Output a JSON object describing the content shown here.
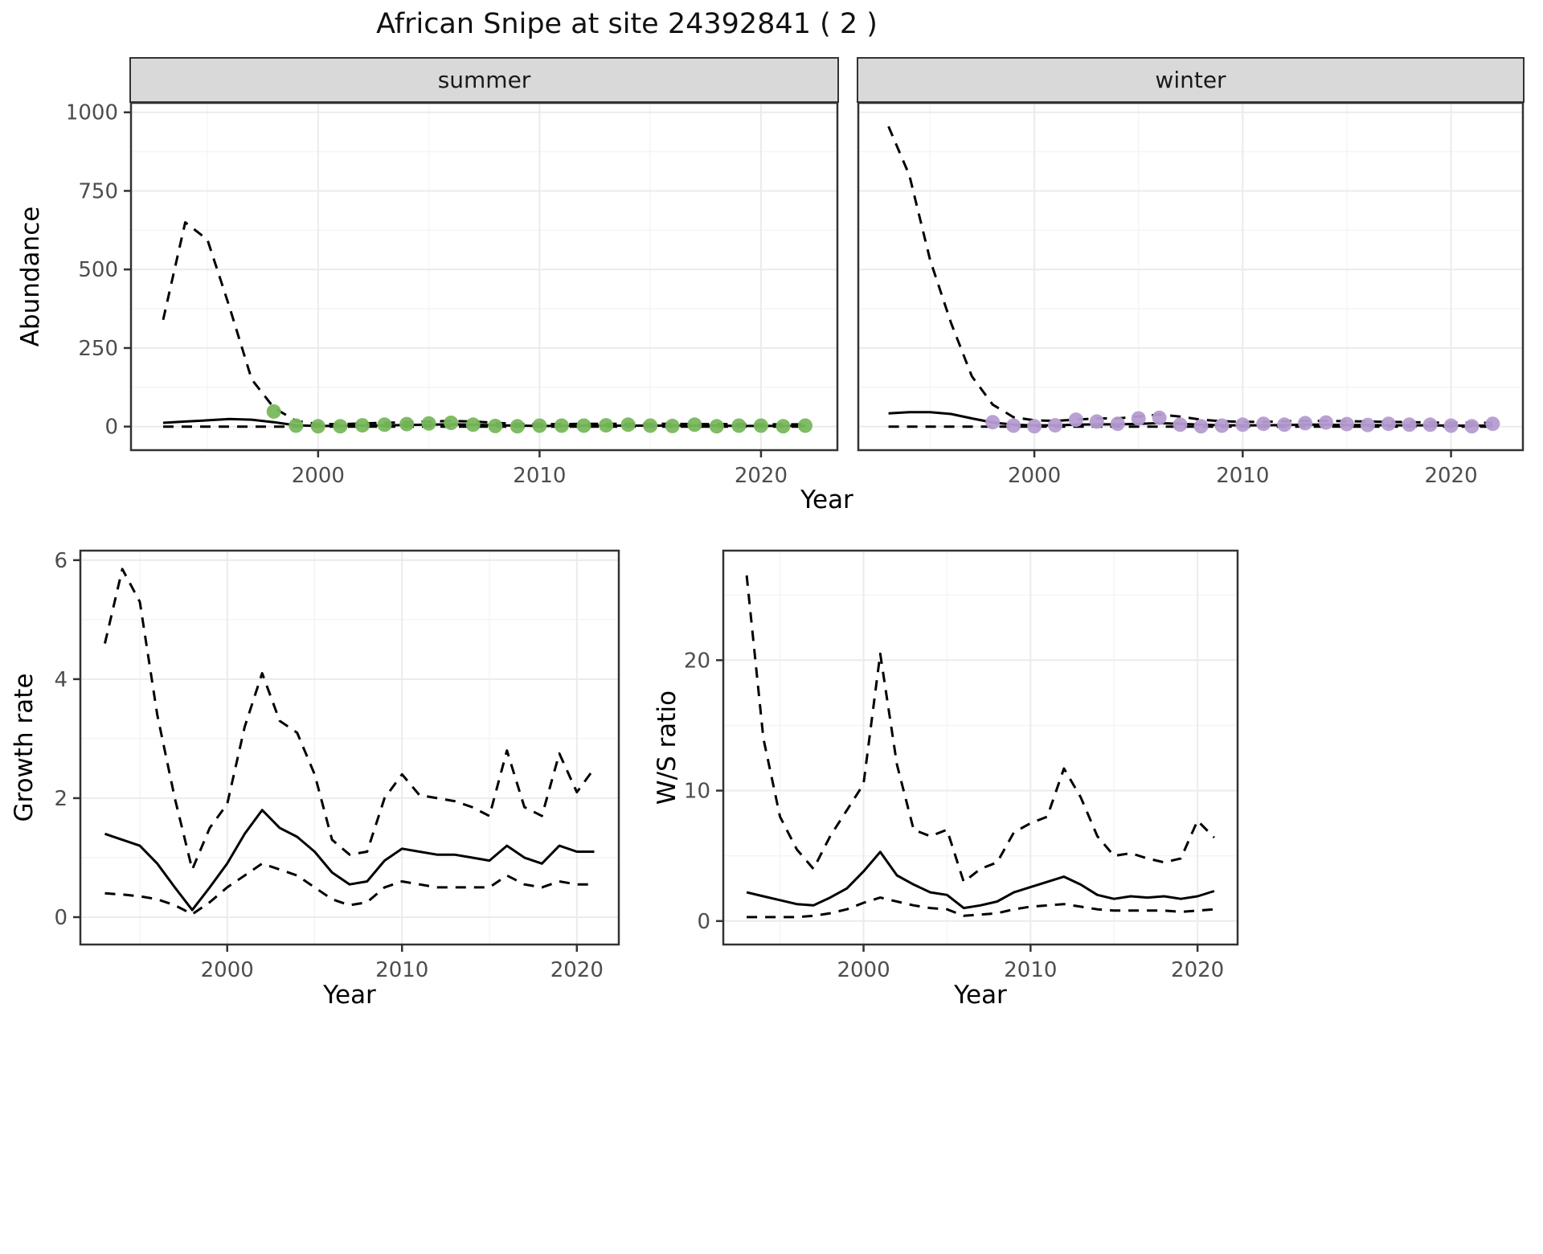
{
  "page": {
    "title": "African Snipe at site 24392841 ( 2 )"
  },
  "theme": {
    "strip_bg": "#d9d9d9",
    "panel_border": "#333333",
    "grid_major": "#ebebeb",
    "grid_minor": "#f5f5f5",
    "tick_label_color": "#4d4d4d",
    "line_color": "#000000"
  },
  "chart_data": [
    {
      "id": "abundance-summer",
      "type": "line+scatter",
      "facet_label": "summer",
      "ylabel": "Abundance",
      "xlabel": "Year",
      "xlim": [
        1991.55,
        2023.45
      ],
      "ylim": [
        -75,
        1030
      ],
      "xticks": [
        2000,
        2010,
        2020
      ],
      "yticks": [
        0,
        250,
        500,
        750,
        1000
      ],
      "grid": true,
      "legend": "none",
      "x": [
        1993,
        1994,
        1995,
        1996,
        1997,
        1998,
        1999,
        2000,
        2001,
        2002,
        2003,
        2004,
        2005,
        2006,
        2007,
        2008,
        2009,
        2010,
        2011,
        2012,
        2013,
        2014,
        2015,
        2016,
        2017,
        2018,
        2019,
        2020,
        2021,
        2022
      ],
      "series": [
        {
          "name": "fit",
          "style": "solid",
          "values": [
            12,
            16,
            20,
            24,
            22,
            14,
            4,
            2,
            2,
            3,
            4,
            5,
            6,
            7,
            6,
            4,
            3,
            2,
            2,
            3,
            3,
            3,
            3,
            3,
            3,
            3,
            2,
            2,
            2,
            2
          ]
        },
        {
          "name": "upper_ci",
          "style": "dashed",
          "values": [
            340,
            650,
            595,
            380,
            150,
            60,
            18,
            8,
            8,
            10,
            12,
            14,
            16,
            18,
            16,
            12,
            9,
            8,
            8,
            9,
            9,
            9,
            9,
            9,
            8,
            8,
            8,
            7,
            7,
            7
          ]
        },
        {
          "name": "lower_ci",
          "style": "dashed",
          "values": [
            0,
            0,
            0,
            0,
            0,
            0,
            0,
            0,
            0,
            0,
            0,
            0,
            0,
            0,
            0,
            0,
            0,
            0,
            0,
            0,
            0,
            0,
            0,
            0,
            0,
            0,
            0,
            0,
            0,
            0
          ]
        }
      ],
      "points": {
        "name": "observed-summer",
        "color": "#78b85c",
        "x": [
          1998,
          1999,
          2000,
          2001,
          2002,
          2003,
          2004,
          2005,
          2006,
          2007,
          2008,
          2009,
          2010,
          2011,
          2012,
          2013,
          2014,
          2015,
          2016,
          2017,
          2018,
          2019,
          2020,
          2021,
          2022
        ],
        "values": [
          48,
          3,
          1,
          1,
          4,
          6,
          8,
          10,
          12,
          6,
          2,
          1,
          3,
          3,
          3,
          4,
          6,
          3,
          2,
          6,
          1,
          3,
          3,
          1,
          3
        ]
      }
    },
    {
      "id": "abundance-winter",
      "type": "line+scatter",
      "facet_label": "winter",
      "ylabel": "Abundance",
      "xlabel": "Year",
      "xlim": [
        1991.55,
        2023.45
      ],
      "ylim": [
        -75,
        1030
      ],
      "xticks": [
        2000,
        2010,
        2020
      ],
      "yticks": [
        0,
        250,
        500,
        750,
        1000
      ],
      "grid": true,
      "legend": "none",
      "x": [
        1993,
        1994,
        1995,
        1996,
        1997,
        1998,
        1999,
        2000,
        2001,
        2002,
        2003,
        2004,
        2005,
        2006,
        2007,
        2008,
        2009,
        2010,
        2011,
        2012,
        2013,
        2014,
        2015,
        2016,
        2017,
        2018,
        2019,
        2020,
        2021,
        2022
      ],
      "series": [
        {
          "name": "fit",
          "style": "solid",
          "values": [
            42,
            46,
            46,
            40,
            26,
            13,
            6,
            4,
            4,
            6,
            7,
            7,
            9,
            11,
            9,
            6,
            4,
            4,
            4,
            5,
            6,
            6,
            5,
            5,
            4,
            4,
            4,
            3,
            3,
            3
          ]
        },
        {
          "name": "upper_ci",
          "style": "dashed",
          "values": [
            955,
            800,
            530,
            330,
            160,
            70,
            30,
            20,
            18,
            22,
            26,
            26,
            32,
            38,
            32,
            22,
            17,
            15,
            15,
            17,
            18,
            18,
            17,
            16,
            15,
            14,
            13,
            12,
            12,
            12
          ]
        },
        {
          "name": "lower_ci",
          "style": "dashed",
          "values": [
            0,
            0,
            0,
            0,
            0,
            0,
            0,
            0,
            0,
            0,
            0,
            0,
            0,
            0,
            0,
            0,
            0,
            0,
            0,
            0,
            0,
            0,
            0,
            0,
            0,
            0,
            0,
            0,
            0,
            0
          ]
        }
      ],
      "points": {
        "name": "observed-winter",
        "color": "#b59cd1",
        "x": [
          1998,
          1999,
          2000,
          2001,
          2002,
          2003,
          2004,
          2005,
          2006,
          2007,
          2008,
          2009,
          2010,
          2011,
          2012,
          2013,
          2014,
          2015,
          2016,
          2017,
          2018,
          2019,
          2020,
          2021,
          2022
        ],
        "values": [
          14,
          3,
          1,
          4,
          22,
          16,
          9,
          26,
          28,
          6,
          1,
          3,
          6,
          9,
          6,
          11,
          13,
          8,
          5,
          9,
          6,
          6,
          3,
          1,
          9
        ]
      }
    },
    {
      "id": "growth",
      "type": "line",
      "facet_label": "",
      "ylabel": "Growth rate",
      "xlabel": "Year",
      "xlim": [
        1991.6,
        2022.4
      ],
      "ylim": [
        -0.46,
        6.16
      ],
      "xticks": [
        2000,
        2010,
        2020
      ],
      "yticks": [
        0,
        2,
        4,
        6
      ],
      "grid": true,
      "legend": "none",
      "x": [
        1993,
        1994,
        1995,
        1996,
        1997,
        1998,
        1999,
        2000,
        2001,
        2002,
        2003,
        2004,
        2005,
        2006,
        2007,
        2008,
        2009,
        2010,
        2011,
        2012,
        2013,
        2014,
        2015,
        2016,
        2017,
        2018,
        2019,
        2020,
        2021
      ],
      "series": [
        {
          "name": "fit",
          "style": "solid",
          "values": [
            1.4,
            1.3,
            1.2,
            0.9,
            0.5,
            0.12,
            0.5,
            0.9,
            1.4,
            1.8,
            1.5,
            1.35,
            1.1,
            0.75,
            0.55,
            0.6,
            0.95,
            1.15,
            1.1,
            1.05,
            1.05,
            1.0,
            0.95,
            1.2,
            1.0,
            0.9,
            1.2,
            1.1,
            1.1
          ]
        },
        {
          "name": "upper_ci",
          "style": "dashed",
          "values": [
            4.6,
            5.85,
            5.3,
            3.4,
            2.0,
            0.8,
            1.5,
            1.9,
            3.2,
            4.1,
            3.3,
            3.1,
            2.4,
            1.3,
            1.05,
            1.1,
            2.0,
            2.4,
            2.05,
            2.0,
            1.95,
            1.85,
            1.7,
            2.8,
            1.85,
            1.7,
            2.75,
            2.1,
            2.5
          ]
        },
        {
          "name": "lower_ci",
          "style": "dashed",
          "values": [
            0.4,
            0.38,
            0.35,
            0.3,
            0.2,
            0.05,
            0.25,
            0.5,
            0.7,
            0.9,
            0.8,
            0.7,
            0.5,
            0.3,
            0.2,
            0.25,
            0.5,
            0.6,
            0.55,
            0.5,
            0.5,
            0.5,
            0.5,
            0.7,
            0.55,
            0.5,
            0.6,
            0.55,
            0.55
          ]
        }
      ]
    },
    {
      "id": "ratio",
      "type": "line",
      "facet_label": "",
      "ylabel": "W/S ratio",
      "xlabel": "Year",
      "xlim": [
        1991.6,
        2022.4
      ],
      "ylim": [
        -1.8,
        28.4
      ],
      "xticks": [
        2000,
        2010,
        2020
      ],
      "yticks": [
        0,
        10,
        20
      ],
      "grid": true,
      "legend": "none",
      "x": [
        1993,
        1994,
        1995,
        1996,
        1997,
        1998,
        1999,
        2000,
        2001,
        2002,
        2003,
        2004,
        2005,
        2006,
        2007,
        2008,
        2009,
        2010,
        2011,
        2012,
        2013,
        2014,
        2015,
        2016,
        2017,
        2018,
        2019,
        2020,
        2021
      ],
      "series": [
        {
          "name": "fit",
          "style": "solid",
          "values": [
            2.2,
            1.9,
            1.6,
            1.3,
            1.2,
            1.8,
            2.5,
            3.8,
            5.3,
            3.5,
            2.8,
            2.2,
            2.0,
            1.0,
            1.2,
            1.5,
            2.2,
            2.6,
            3.0,
            3.4,
            2.8,
            2.0,
            1.7,
            1.9,
            1.8,
            1.9,
            1.7,
            1.9,
            2.3
          ]
        },
        {
          "name": "upper_ci",
          "style": "dashed",
          "values": [
            26.5,
            14,
            8,
            5.5,
            4.0,
            6.5,
            8.5,
            10.5,
            20.5,
            12,
            7,
            6.5,
            7,
            3.0,
            4.0,
            4.5,
            6.8,
            7.5,
            8.0,
            11.7,
            9.5,
            6.5,
            5.0,
            5.2,
            4.8,
            4.5,
            4.8,
            7.7,
            6.4
          ]
        },
        {
          "name": "lower_ci",
          "style": "dashed",
          "values": [
            0.3,
            0.3,
            0.3,
            0.3,
            0.4,
            0.6,
            0.9,
            1.4,
            1.8,
            1.5,
            1.2,
            1.0,
            0.9,
            0.4,
            0.5,
            0.6,
            0.9,
            1.1,
            1.2,
            1.3,
            1.1,
            0.9,
            0.8,
            0.8,
            0.8,
            0.8,
            0.7,
            0.8,
            0.9
          ]
        }
      ]
    }
  ]
}
